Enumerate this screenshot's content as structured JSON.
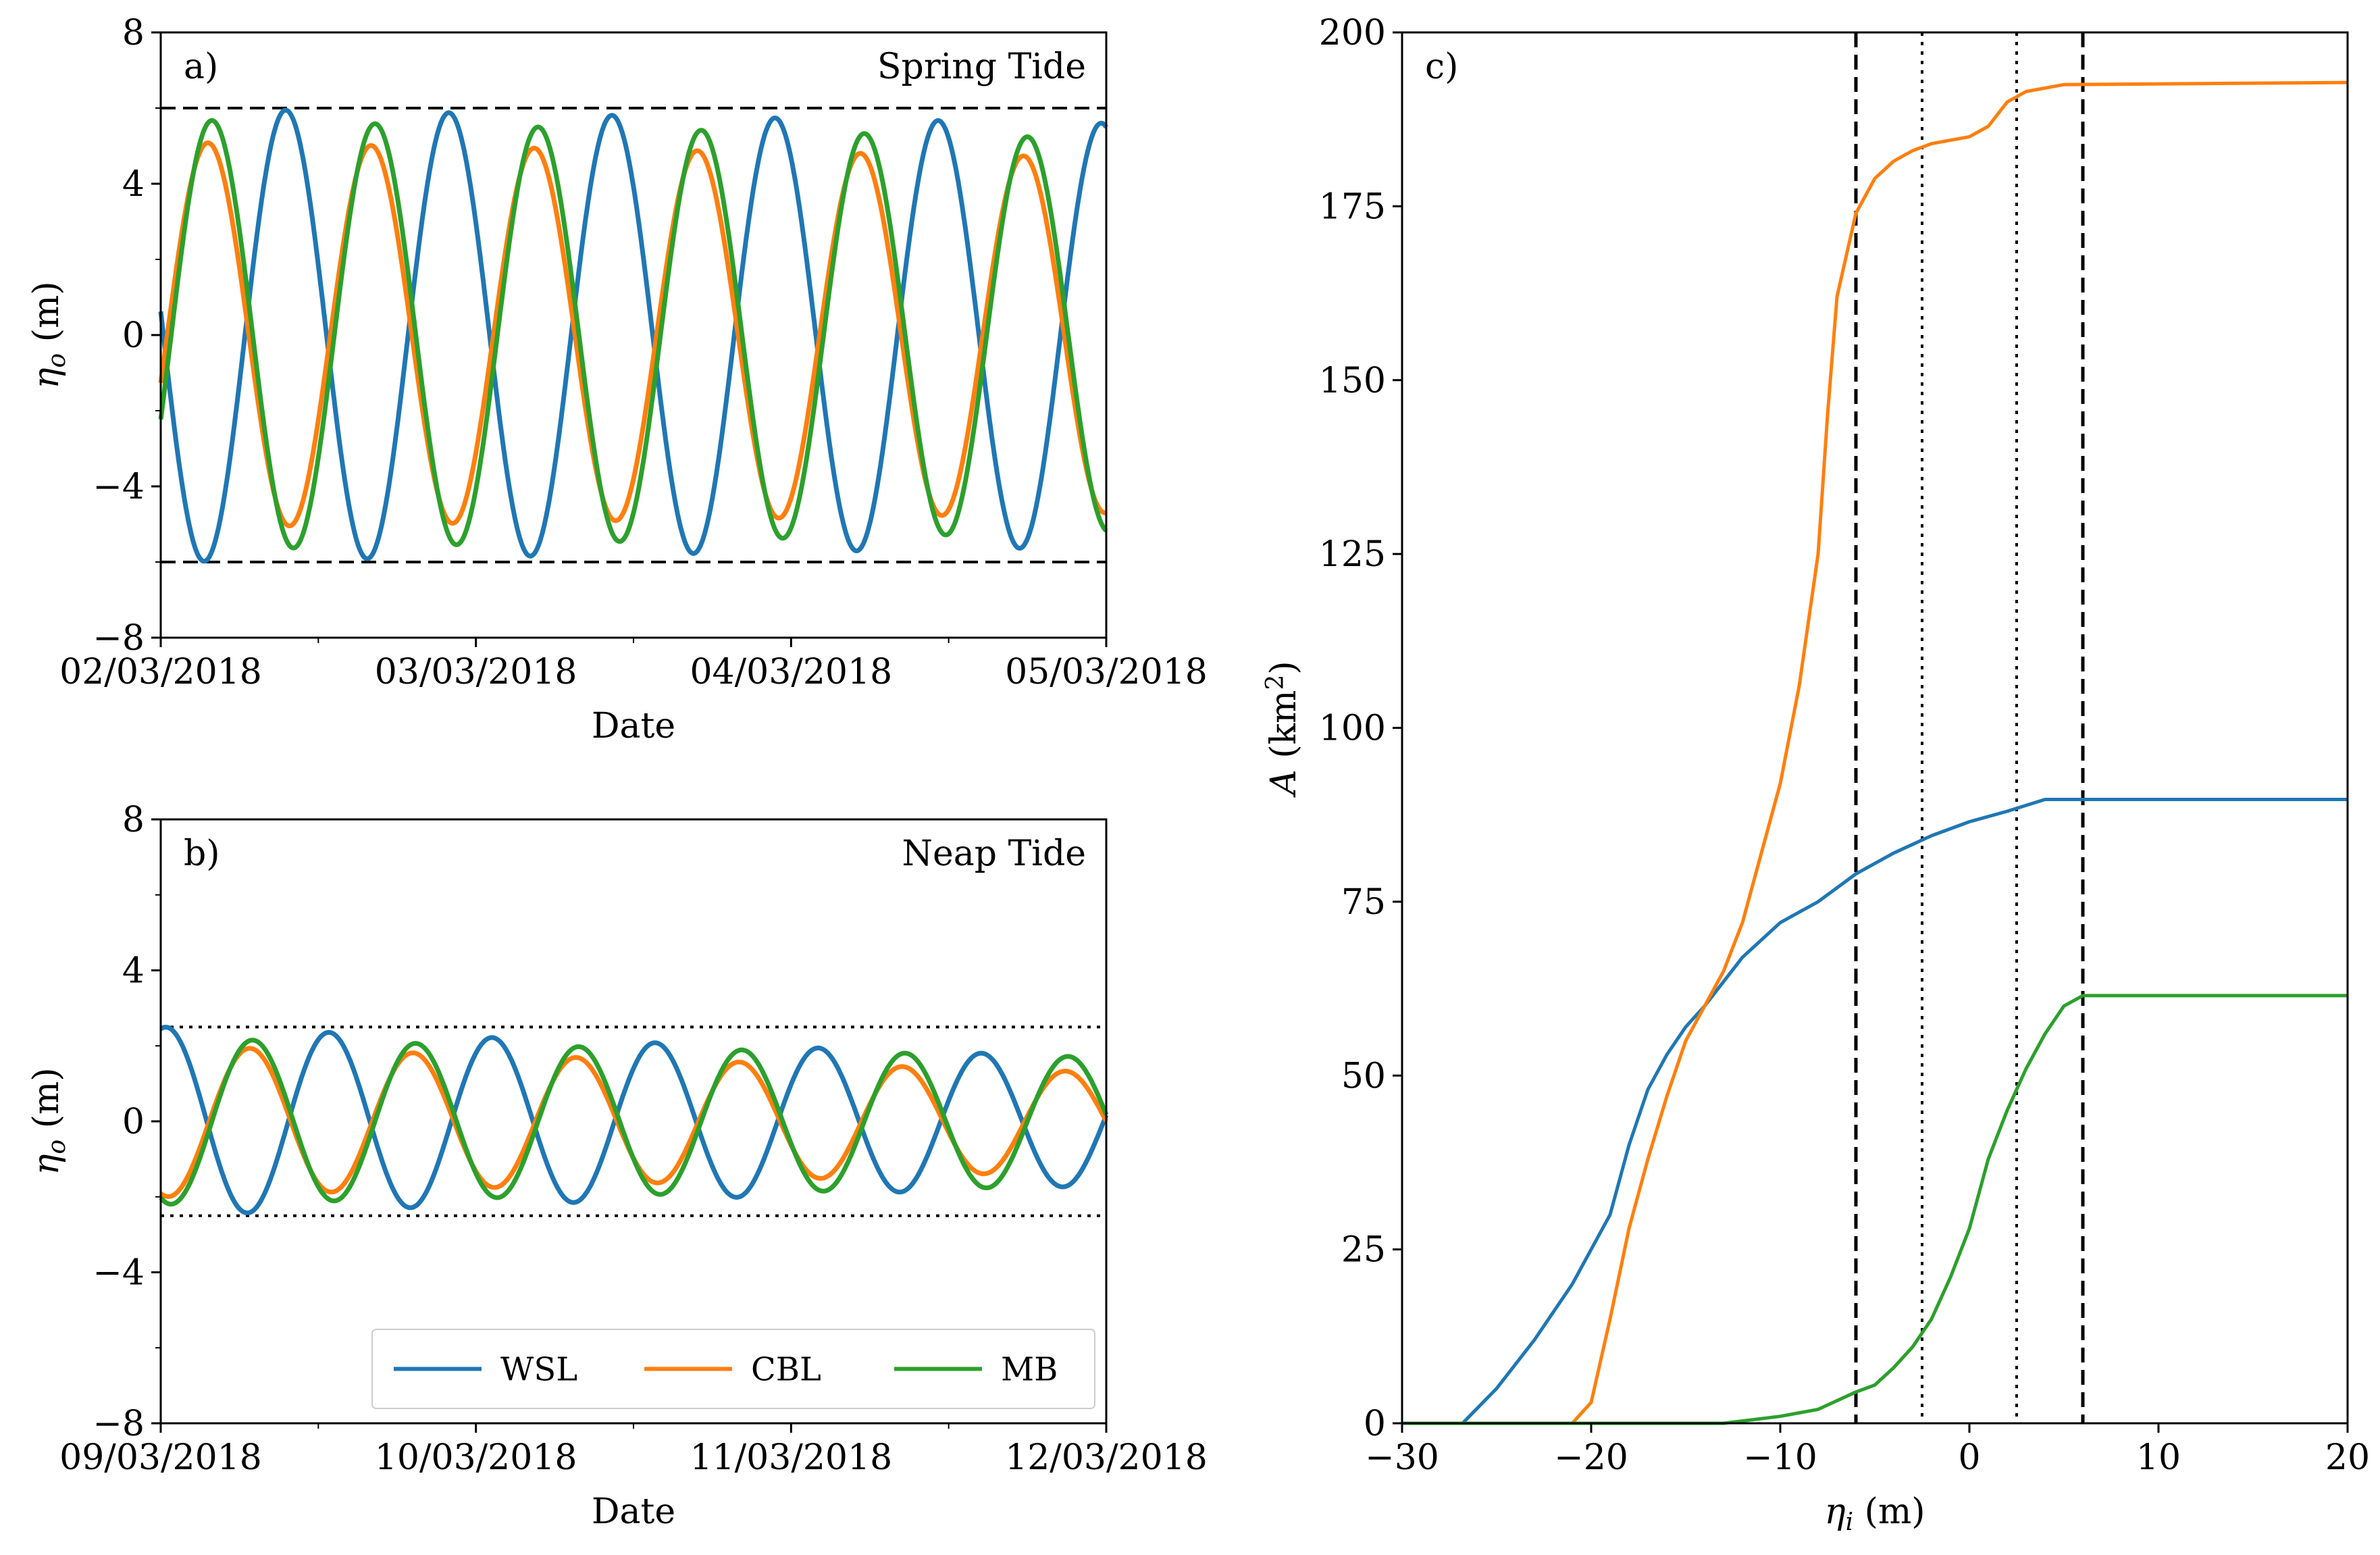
{
  "chart_data": [
    {
      "type": "line",
      "panel": "a)",
      "title": "Spring Tide",
      "xlabel": "Date",
      "ylabel": "η_o (m)",
      "ylabel_main": "η",
      "ylabel_sub": "o",
      "ylabel_unit": " (m)",
      "ylim": [
        -8,
        8
      ],
      "yticks": [
        -8,
        -4,
        0,
        4,
        8
      ],
      "ytick_labels": [
        "−8",
        "−4",
        "0",
        "4",
        "8"
      ],
      "xlim_hours": [
        0,
        72
      ],
      "xticks_hours": [
        0,
        24,
        48,
        72
      ],
      "xtick_labels": [
        "02/03/2018",
        "03/03/2018",
        "04/03/2018",
        "05/03/2018"
      ],
      "reference_lines": [
        {
          "y": 6,
          "style": "dashed"
        },
        {
          "y": -6,
          "style": "dashed"
        }
      ],
      "series": [
        {
          "name": "WSL",
          "color": "#1f77b4",
          "amplitude_m": [
            6.0,
            5.6
          ],
          "period_h": 12.42,
          "phase_h": -2.9
        },
        {
          "name": "CBL",
          "color": "#ff7f0e",
          "amplitude_m": [
            5.1,
            4.7
          ],
          "period_h": 12.42,
          "phase_h": 3.6
        },
        {
          "name": "MB",
          "color": "#2ca02c",
          "amplitude_m": [
            5.7,
            5.2
          ],
          "period_h": 12.42,
          "phase_h": 3.9
        }
      ]
    },
    {
      "type": "line",
      "panel": "b)",
      "title": "Neap Tide",
      "xlabel": "Date",
      "ylabel": "η_o (m)",
      "ylabel_main": "η",
      "ylabel_sub": "o",
      "ylabel_unit": " (m)",
      "ylim": [
        -8,
        8
      ],
      "yticks": [
        -8,
        -4,
        0,
        4,
        8
      ],
      "ytick_labels": [
        "−8",
        "−4",
        "0",
        "4",
        "8"
      ],
      "xlim_hours": [
        0,
        72
      ],
      "xticks_hours": [
        0,
        24,
        48,
        72
      ],
      "xtick_labels": [
        "09/03/2018",
        "10/03/2018",
        "11/03/2018",
        "12/03/2018"
      ],
      "reference_lines": [
        {
          "y": 2.5,
          "style": "dotted"
        },
        {
          "y": -2.5,
          "style": "dotted"
        }
      ],
      "legend": {
        "placement": "lower-right",
        "entries": [
          "WSL",
          "CBL",
          "MB"
        ]
      },
      "series": [
        {
          "name": "WSL",
          "color": "#1f77b4",
          "amplitude_m": [
            2.5,
            1.7
          ],
          "period_h": 12.42,
          "phase_h": 0.4
        },
        {
          "name": "CBL",
          "color": "#ff7f0e",
          "amplitude_m": [
            2.0,
            1.3
          ],
          "period_h": 12.42,
          "phase_h": 6.8
        },
        {
          "name": "MB",
          "color": "#2ca02c",
          "amplitude_m": [
            2.2,
            1.7
          ],
          "period_h": 12.42,
          "phase_h": 7.0
        }
      ]
    },
    {
      "type": "line",
      "panel": "c)",
      "xlabel": "η_i (m)",
      "xlabel_main": "η",
      "xlabel_sub": "i",
      "xlabel_unit": " (m)",
      "ylabel": "A (km²)",
      "ylabel_main": "A",
      "ylabel_unit": " (km",
      "ylabel_sup": "2",
      "ylabel_close": ")",
      "xlim": [
        -30,
        20
      ],
      "ylim": [
        0,
        200
      ],
      "xticks": [
        -30,
        -20,
        -10,
        0,
        10,
        20
      ],
      "xtick_labels": [
        "−30",
        "−20",
        "−10",
        "0",
        "10",
        "20"
      ],
      "yticks": [
        0,
        25,
        50,
        75,
        100,
        125,
        150,
        175,
        200
      ],
      "ytick_labels": [
        "0",
        "25",
        "50",
        "75",
        "100",
        "125",
        "150",
        "175",
        "200"
      ],
      "reference_lines": [
        {
          "x": -6,
          "style": "dashed"
        },
        {
          "x": 6,
          "style": "dashed"
        },
        {
          "x": -2.5,
          "style": "dotted"
        },
        {
          "x": 2.5,
          "style": "dotted"
        }
      ],
      "series": [
        {
          "name": "WSL",
          "color": "#1f77b4",
          "x": [
            -30,
            -26.8,
            -25,
            -23,
            -21,
            -19,
            -18,
            -17,
            -16,
            -15,
            -14,
            -12,
            -10,
            -8,
            -6,
            -4,
            -2,
            0,
            2,
            4,
            20
          ],
          "y": [
            0,
            0,
            5,
            12,
            20,
            30,
            40,
            48,
            53,
            57,
            60,
            67,
            72,
            75,
            79,
            82,
            84.5,
            86.5,
            88,
            89.7,
            89.7
          ]
        },
        {
          "name": "CBL",
          "color": "#ff7f0e",
          "x": [
            -30,
            -21,
            -20,
            -19,
            -18,
            -17,
            -16,
            -15,
            -14,
            -13,
            -12,
            -11,
            -10,
            -9,
            -8,
            -7.5,
            -7,
            -6,
            -5,
            -4,
            -3,
            -2,
            -1,
            0,
            1,
            2,
            3,
            5,
            20
          ],
          "y": [
            0,
            0,
            3,
            15,
            28,
            38,
            47,
            55,
            60,
            65,
            72,
            82,
            92,
            106,
            125,
            145,
            162,
            174,
            179,
            181.5,
            183,
            184,
            184.5,
            185,
            186.5,
            190,
            191.5,
            192.5,
            192.8
          ]
        },
        {
          "name": "MB",
          "color": "#2ca02c",
          "x": [
            -30,
            -13,
            -10,
            -8,
            -6,
            -5,
            -4,
            -3,
            -2,
            -1,
            0,
            1,
            2,
            3,
            4,
            5,
            6,
            20
          ],
          "y": [
            0,
            0,
            1,
            2,
            4.5,
            5.5,
            8,
            11,
            15,
            21,
            28,
            38,
            45,
            51,
            56,
            60,
            61.5,
            61.5
          ]
        }
      ]
    }
  ]
}
